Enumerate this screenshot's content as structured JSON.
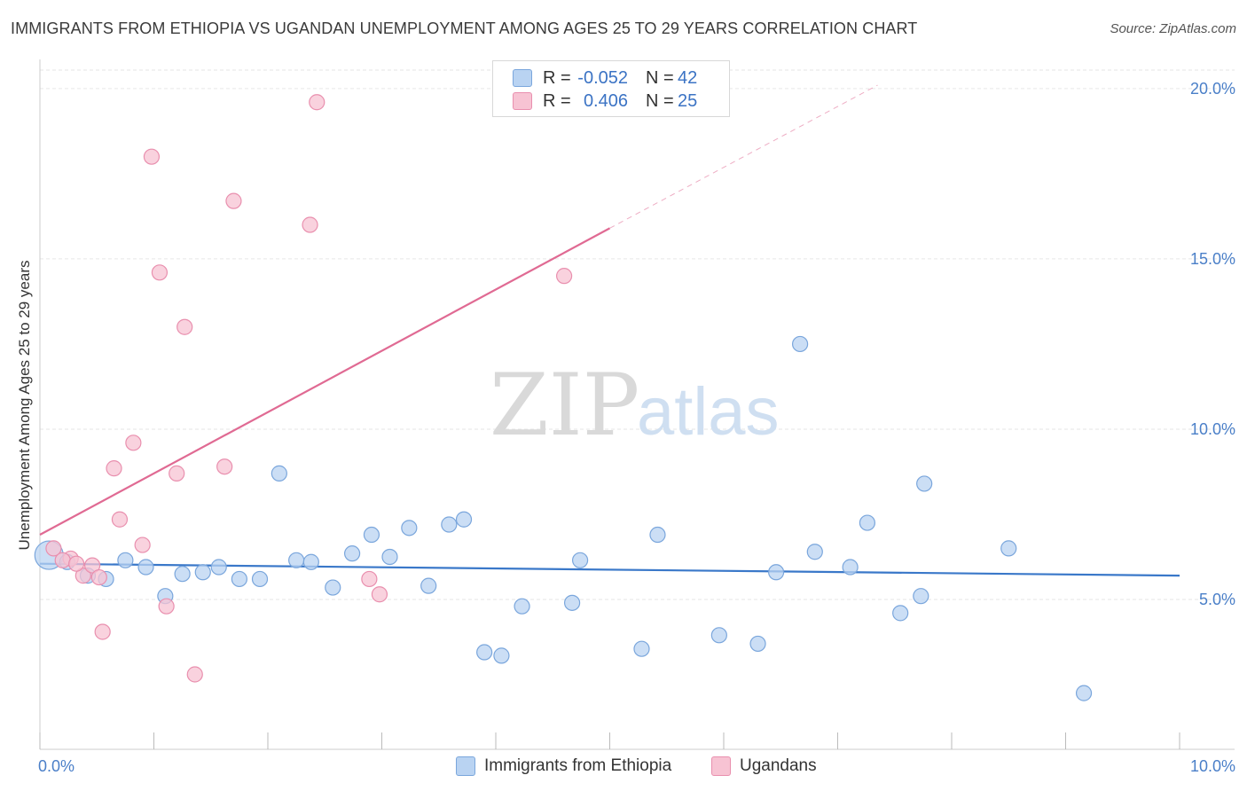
{
  "title": "IMMIGRANTS FROM ETHIOPIA VS UGANDAN UNEMPLOYMENT AMONG AGES 25 TO 29 YEARS CORRELATION CHART",
  "source": "Source: ZipAtlas.com",
  "watermark": {
    "zip": "ZIP",
    "atlas": "atlas"
  },
  "colors": {
    "blue_fill": "#b9d3f2",
    "blue_stroke": "#7aa6dc",
    "blue_line": "#3a78c9",
    "pink_fill": "#f7c3d3",
    "pink_stroke": "#e98fae",
    "pink_line": "#e06a93",
    "grid": "#e6e6e6",
    "tick_text": "#4a7fc8"
  },
  "legend": {
    "rows": [
      {
        "r_label": "R =",
        "r_value": "-0.052",
        "n_label": "N =",
        "n_value": "42"
      },
      {
        "r_label": "R =",
        "r_value": "0.406",
        "n_label": "N =",
        "n_value": "25"
      }
    ]
  },
  "bottom_legend": [
    "Immigrants from Ethiopia",
    "Ugandans"
  ],
  "chart_data": {
    "type": "scatter",
    "xlabel": "",
    "ylabel": "Unemployment Among Ages 25 to 29 years",
    "xlim": [
      0,
      10
    ],
    "ylim": [
      0.6,
      20.7
    ],
    "x_tick_labels": [
      {
        "value": 0,
        "label": "0.0%"
      },
      {
        "value": 10,
        "label": "10.0%"
      }
    ],
    "y_tick_labels": [
      {
        "value": 5,
        "label": "5.0%"
      },
      {
        "value": 10,
        "label": "10.0%"
      },
      {
        "value": 15,
        "label": "15.0%"
      },
      {
        "value": 20,
        "label": "20.0%"
      }
    ],
    "x_minor_ticks": [
      0,
      1,
      2,
      3,
      4,
      5,
      6,
      7,
      8,
      9,
      10
    ],
    "grid": true,
    "legend_position": "top-center",
    "series": [
      {
        "name": "Immigrants from Ethiopia",
        "color": "blue",
        "trend": {
          "x": [
            0,
            10
          ],
          "y": [
            6.05,
            5.7
          ],
          "dashed_beyond": null
        },
        "points": [
          {
            "x": 0.08,
            "y": 6.3,
            "big": true
          },
          {
            "x": 0.24,
            "y": 6.1
          },
          {
            "x": 0.42,
            "y": 5.7
          },
          {
            "x": 0.58,
            "y": 5.6
          },
          {
            "x": 0.75,
            "y": 6.15
          },
          {
            "x": 0.93,
            "y": 5.95
          },
          {
            "x": 1.1,
            "y": 5.1
          },
          {
            "x": 1.25,
            "y": 5.75
          },
          {
            "x": 1.43,
            "y": 5.8
          },
          {
            "x": 1.57,
            "y": 5.95
          },
          {
            "x": 1.75,
            "y": 5.6
          },
          {
            "x": 1.93,
            "y": 5.6
          },
          {
            "x": 2.1,
            "y": 8.7
          },
          {
            "x": 2.25,
            "y": 6.15
          },
          {
            "x": 2.38,
            "y": 6.1
          },
          {
            "x": 2.57,
            "y": 5.35
          },
          {
            "x": 2.74,
            "y": 6.35
          },
          {
            "x": 2.91,
            "y": 6.9
          },
          {
            "x": 3.07,
            "y": 6.25
          },
          {
            "x": 3.24,
            "y": 7.1
          },
          {
            "x": 3.41,
            "y": 5.4
          },
          {
            "x": 3.59,
            "y": 7.2
          },
          {
            "x": 3.72,
            "y": 7.35
          },
          {
            "x": 3.9,
            "y": 3.45
          },
          {
            "x": 4.05,
            "y": 3.35
          },
          {
            "x": 4.23,
            "y": 4.8
          },
          {
            "x": 4.67,
            "y": 4.9
          },
          {
            "x": 4.74,
            "y": 6.15
          },
          {
            "x": 5.28,
            "y": 3.55
          },
          {
            "x": 5.42,
            "y": 6.9
          },
          {
            "x": 5.96,
            "y": 3.95
          },
          {
            "x": 6.3,
            "y": 3.7
          },
          {
            "x": 6.46,
            "y": 5.8
          },
          {
            "x": 6.67,
            "y": 12.5
          },
          {
            "x": 6.8,
            "y": 6.4
          },
          {
            "x": 7.11,
            "y": 5.95
          },
          {
            "x": 7.26,
            "y": 7.25
          },
          {
            "x": 7.55,
            "y": 4.6
          },
          {
            "x": 7.73,
            "y": 5.1
          },
          {
            "x": 7.76,
            "y": 8.4
          },
          {
            "x": 8.5,
            "y": 6.5
          },
          {
            "x": 9.16,
            "y": 2.25
          }
        ]
      },
      {
        "name": "Ugandans",
        "color": "pink",
        "trend": {
          "x": [
            0,
            5.0
          ],
          "y": [
            6.9,
            15.9
          ],
          "dashed_x": [
            5.0,
            7.35
          ],
          "dashed_y": [
            15.9,
            20.1
          ]
        },
        "points": [
          {
            "x": 0.12,
            "y": 6.5
          },
          {
            "x": 0.27,
            "y": 6.2
          },
          {
            "x": 0.38,
            "y": 5.7
          },
          {
            "x": 0.55,
            "y": 4.05
          },
          {
            "x": 0.65,
            "y": 8.85
          },
          {
            "x": 0.82,
            "y": 9.6
          },
          {
            "x": 0.9,
            "y": 6.6
          },
          {
            "x": 0.98,
            "y": 18.0
          },
          {
            "x": 1.05,
            "y": 14.6
          },
          {
            "x": 1.11,
            "y": 4.8
          },
          {
            "x": 1.2,
            "y": 8.7
          },
          {
            "x": 1.27,
            "y": 13.0
          },
          {
            "x": 1.36,
            "y": 2.8
          },
          {
            "x": 1.62,
            "y": 8.9
          },
          {
            "x": 1.7,
            "y": 16.7
          },
          {
            "x": 2.37,
            "y": 16.0
          },
          {
            "x": 2.43,
            "y": 19.6
          },
          {
            "x": 2.89,
            "y": 5.6
          },
          {
            "x": 2.98,
            "y": 5.15
          },
          {
            "x": 4.6,
            "y": 14.5
          },
          {
            "x": 0.7,
            "y": 7.35
          },
          {
            "x": 0.46,
            "y": 6.0
          },
          {
            "x": 0.52,
            "y": 5.65
          },
          {
            "x": 0.2,
            "y": 6.15
          },
          {
            "x": 0.32,
            "y": 6.05
          }
        ]
      }
    ]
  }
}
